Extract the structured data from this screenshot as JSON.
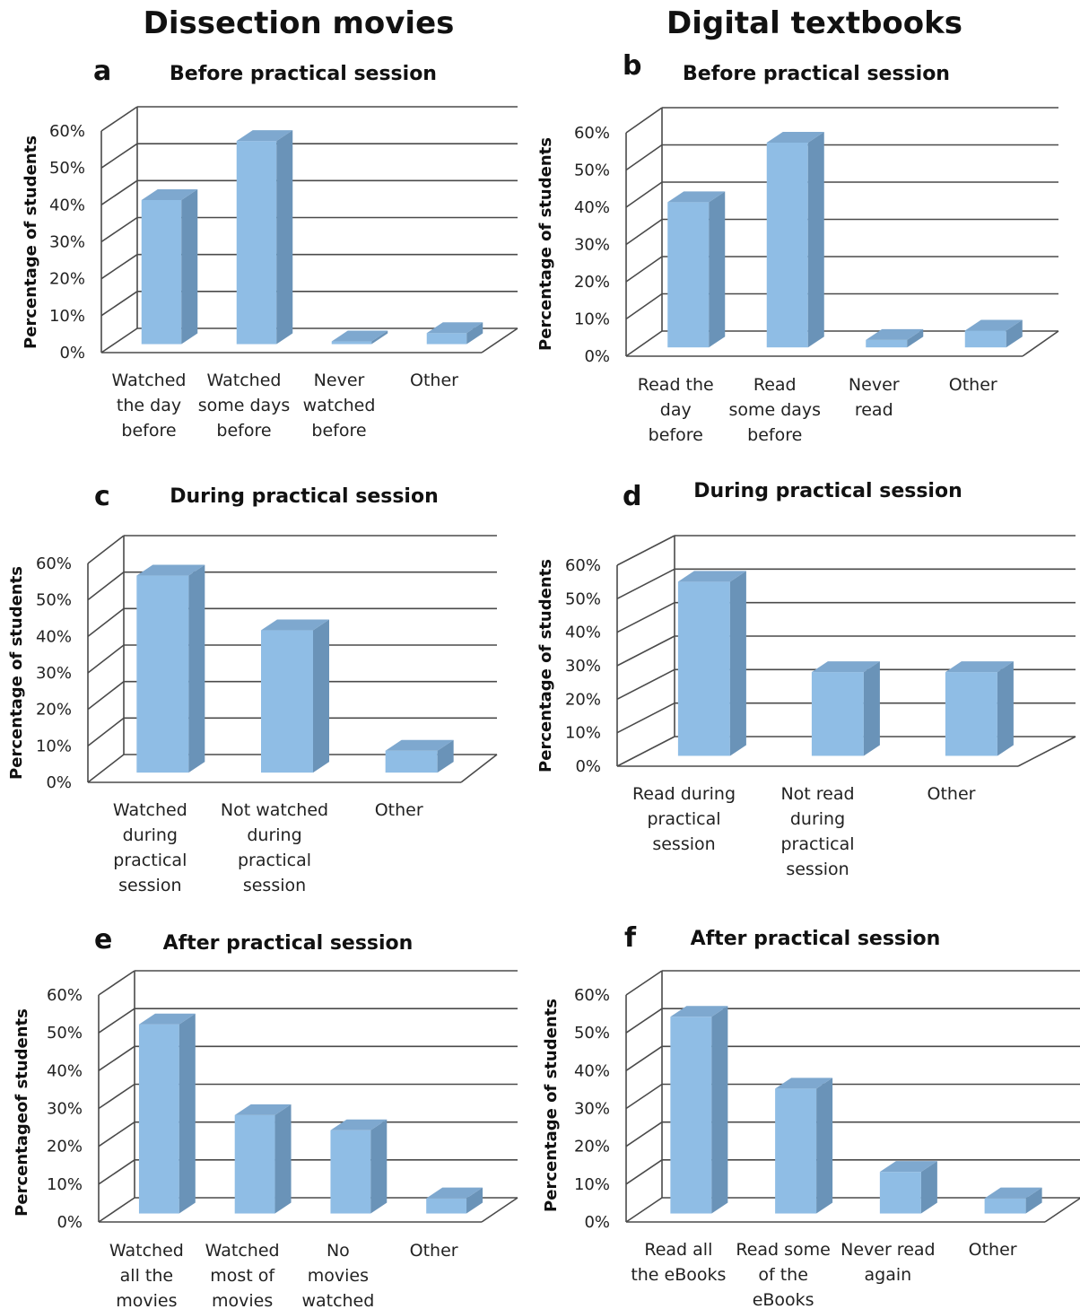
{
  "figure": {
    "column_headers": [
      "Dissection movies",
      "Digital textbooks"
    ],
    "bar_colors": {
      "front": "#8fbde5",
      "side": "#6a93b8",
      "top": "#7ea8cf"
    }
  },
  "chart_data": [
    {
      "type": "bar",
      "panel": "a",
      "title": "Before practical session",
      "ylabel": "Percentage of students",
      "ylim": [
        0,
        60
      ],
      "yticks": [
        "0%",
        "10%",
        "20%",
        "30%",
        "40%",
        "50%",
        "60%"
      ],
      "grid": true,
      "categories": [
        [
          "Watched",
          "the day",
          "before"
        ],
        [
          "Watched",
          "some days",
          "before"
        ],
        [
          "Never",
          "watched",
          "before"
        ],
        [
          "Other"
        ]
      ],
      "values": [
        39,
        55,
        0,
        3
      ]
    },
    {
      "type": "bar",
      "panel": "b",
      "title": "Before practical session",
      "ylabel": "Percentage of students",
      "ylim": [
        0,
        60
      ],
      "yticks": [
        "0%",
        "10%",
        "20%",
        "30%",
        "40%",
        "50%",
        "60%"
      ],
      "grid": true,
      "categories": [
        [
          "Read the",
          "day",
          "before"
        ],
        [
          "Read",
          "some days",
          "before"
        ],
        [
          "Never",
          "read"
        ],
        [
          "Other"
        ]
      ],
      "values": [
        39,
        55,
        2,
        4.5
      ]
    },
    {
      "type": "bar",
      "panel": "c",
      "title": "During practical session",
      "ylabel": "Percentage of students",
      "ylim": [
        0,
        60
      ],
      "yticks": [
        "0%",
        "10%",
        "20%",
        "30%",
        "40%",
        "50%",
        "60%"
      ],
      "grid": true,
      "categories": [
        [
          "Watched",
          "during",
          "practical",
          "session"
        ],
        [
          "Not watched",
          "during",
          "practical",
          "session"
        ],
        [
          "Other"
        ]
      ],
      "values": [
        54,
        39,
        6
      ]
    },
    {
      "type": "bar",
      "panel": "d",
      "title": "During practical session",
      "ylabel": "Percentage of students",
      "ylim": [
        0,
        60
      ],
      "yticks": [
        "0%",
        "10%",
        "20%",
        "30%",
        "40%",
        "50%",
        "60%"
      ],
      "grid": true,
      "categories": [
        [
          "Read during",
          "practical",
          "session"
        ],
        [
          "Not read",
          "during",
          "practical",
          "session"
        ],
        [
          "Other"
        ]
      ],
      "values": [
        52,
        25,
        25
      ]
    },
    {
      "type": "bar",
      "panel": "e",
      "title": "After practical session",
      "ylabel": "Percentageof students",
      "ylim": [
        0,
        60
      ],
      "yticks": [
        "0%",
        "10%",
        "20%",
        "30%",
        "40%",
        "50%",
        "60%"
      ],
      "grid": true,
      "categories": [
        [
          "Watched",
          "all the",
          "movies"
        ],
        [
          "Watched",
          "most of",
          "movies"
        ],
        [
          "No",
          "movies",
          "watched"
        ],
        [
          "Other"
        ]
      ],
      "values": [
        50,
        26,
        22,
        4
      ]
    },
    {
      "type": "bar",
      "panel": "f",
      "title": "After practical session",
      "ylabel": "Percentage of students",
      "ylim": [
        0,
        60
      ],
      "yticks": [
        "0%",
        "10%",
        "20%",
        "30%",
        "40%",
        "50%",
        "60%"
      ],
      "grid": true,
      "categories": [
        [
          "Read all",
          "the eBooks"
        ],
        [
          "Read some",
          "of the",
          "eBooks"
        ],
        [
          "Never read",
          "again"
        ],
        [
          "Other"
        ]
      ],
      "values": [
        52,
        33,
        11,
        4
      ]
    }
  ]
}
